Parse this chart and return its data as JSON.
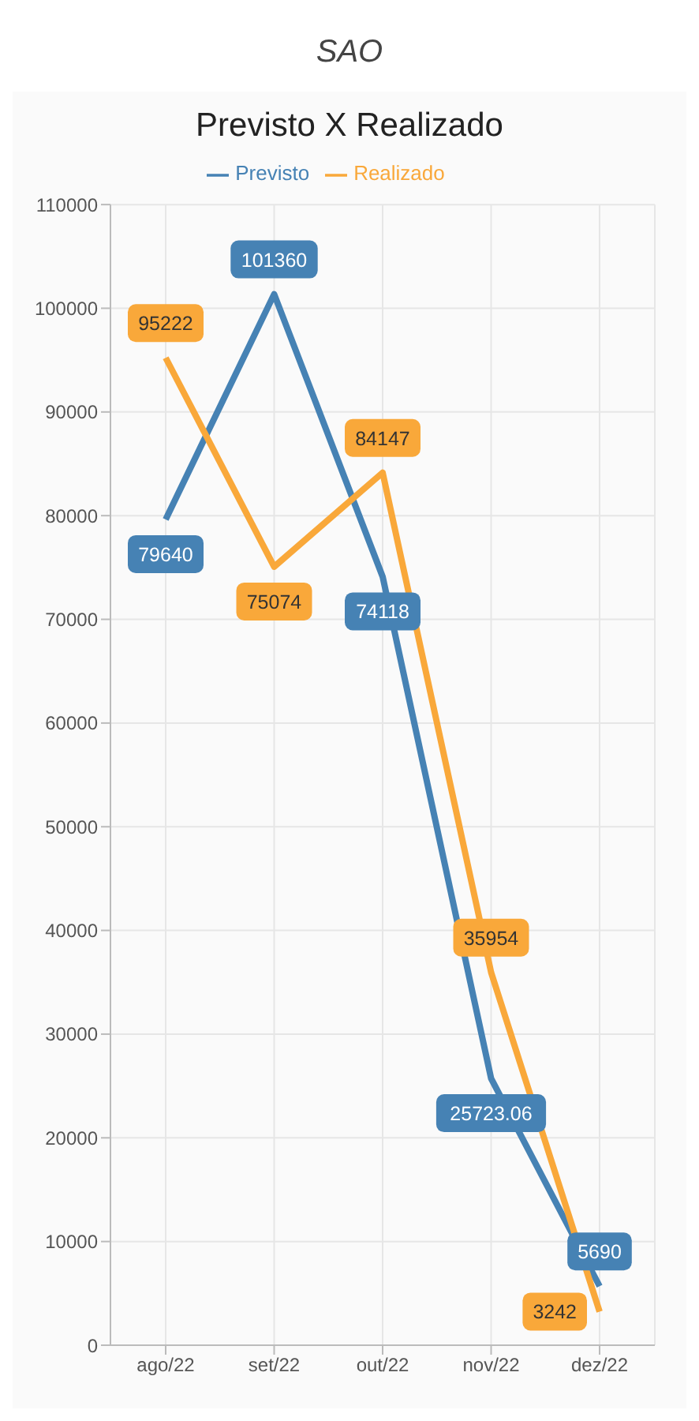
{
  "chart_data": {
    "type": "line",
    "subtitle": "SAO",
    "title": "Previsto X Realizado",
    "categories": [
      "ago/22",
      "set/22",
      "out/22",
      "nov/22",
      "dez/22"
    ],
    "series": [
      {
        "name": "Previsto",
        "color": "#4682b4",
        "values": [
          79640,
          101360,
          74118,
          25723.06,
          5690
        ]
      },
      {
        "name": "Realizado",
        "color": "#f9a83a",
        "values": [
          95222,
          75074,
          84147,
          35954,
          3242
        ]
      }
    ],
    "ylim": [
      0,
      110000
    ],
    "yticks": [
      0,
      10000,
      20000,
      30000,
      40000,
      50000,
      60000,
      70000,
      80000,
      90000,
      100000,
      110000
    ],
    "grid": true,
    "legend": "top",
    "marker": "none",
    "line_style": "solid",
    "data_labels": true
  }
}
